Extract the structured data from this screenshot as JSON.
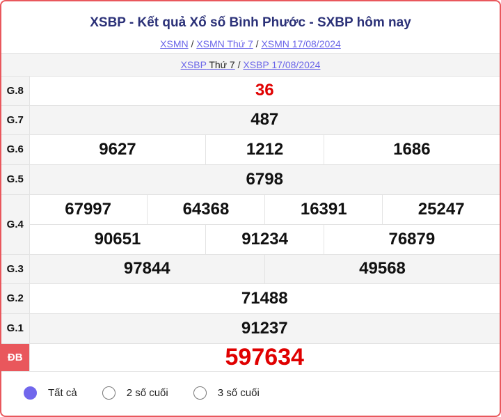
{
  "header": {
    "title": "XSBP - Kết quả Xổ số Bình Phước - SXBP hôm nay",
    "links": [
      "XSMN",
      "XSMN Thứ 7",
      "XSMN 17/08/2024"
    ]
  },
  "subnav": {
    "link1": "XSBP",
    "text1": "Thứ 7",
    "link2": "XSBP 17/08/2024"
  },
  "results": {
    "g8": {
      "label": "G.8",
      "values": [
        "36"
      ]
    },
    "g7": {
      "label": "G.7",
      "values": [
        "487"
      ]
    },
    "g6": {
      "label": "G.6",
      "values": [
        "9627",
        "1212",
        "1686"
      ]
    },
    "g5": {
      "label": "G.5",
      "values": [
        "6798"
      ]
    },
    "g4": {
      "label": "G.4",
      "values": [
        "67997",
        "64368",
        "16391",
        "25247",
        "90651",
        "91234",
        "76879"
      ]
    },
    "g3": {
      "label": "G.3",
      "values": [
        "97844",
        "49568"
      ]
    },
    "g2": {
      "label": "G.2",
      "values": [
        "71488"
      ]
    },
    "g1": {
      "label": "G.1",
      "values": [
        "91237"
      ]
    },
    "db": {
      "label": "ĐB",
      "values": [
        "597634"
      ]
    }
  },
  "filter": {
    "options": [
      "Tất cả",
      "2 số cuối",
      "3 số cuối"
    ],
    "selected": "Tất cả"
  },
  "colors": {
    "accent": "#e9575c",
    "link": "#6b66e9",
    "title": "#2b3178",
    "prize": "#e00000",
    "radio": "#7167ec"
  }
}
